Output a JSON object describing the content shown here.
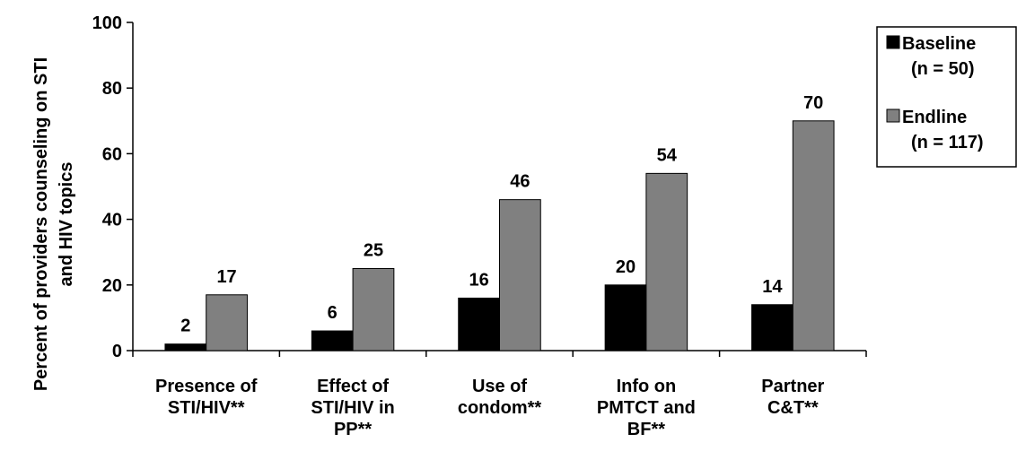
{
  "chart_data": {
    "type": "bar",
    "y_label": "Percent of providers counseling on STI\nand HIV topics",
    "categories": [
      "Presence of\nSTI/HIV**",
      "Effect of\nSTI/HIV in\nPP**",
      "Use of\ncondom**",
      "Info on\nPMTCT and\nBF**",
      "Partner\nC&T**"
    ],
    "series": [
      {
        "name": "Baseline\n(n = 50)",
        "color": "#000000",
        "values": [
          2,
          6,
          16,
          20,
          14
        ]
      },
      {
        "name": "Endline\n(n = 117)",
        "color": "#808080",
        "values": [
          17,
          25,
          46,
          54,
          70
        ]
      }
    ],
    "ylim": [
      0,
      100
    ],
    "yticks": [
      0,
      20,
      40,
      60,
      80,
      100
    ],
    "grid": false,
    "legend": "right"
  }
}
